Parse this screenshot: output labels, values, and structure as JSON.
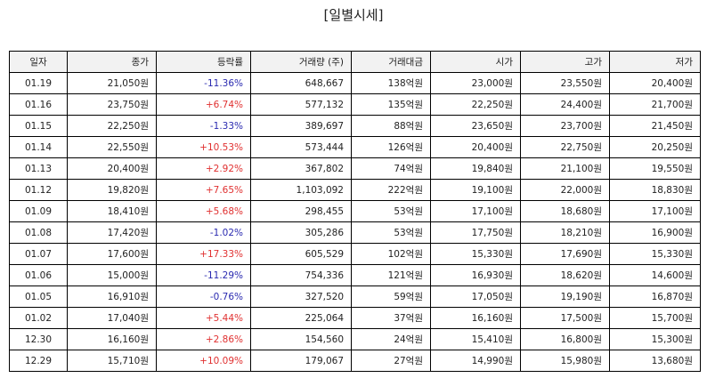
{
  "page": {
    "title": "[일별시세]"
  },
  "colors": {
    "up": "#e03030",
    "down": "#2a2ab0",
    "header_bg": "#f2f2f2",
    "border": "#000000"
  },
  "table": {
    "headers": [
      "일자",
      "종가",
      "등락률",
      "거래량 (주)",
      "거래대금",
      "시가",
      "고가",
      "저가"
    ],
    "rows": [
      {
        "date": "01.19",
        "close": "21,050원",
        "change": "-11.36%",
        "dir": "down",
        "volume": "648,667",
        "amount": "138억원",
        "open": "23,000원",
        "high": "23,550원",
        "low": "20,400원"
      },
      {
        "date": "01.16",
        "close": "23,750원",
        "change": "+6.74%",
        "dir": "up",
        "volume": "577,132",
        "amount": "135억원",
        "open": "22,250원",
        "high": "24,400원",
        "low": "21,700원"
      },
      {
        "date": "01.15",
        "close": "22,250원",
        "change": "-1.33%",
        "dir": "down",
        "volume": "389,697",
        "amount": "88억원",
        "open": "23,650원",
        "high": "23,700원",
        "low": "21,450원"
      },
      {
        "date": "01.14",
        "close": "22,550원",
        "change": "+10.53%",
        "dir": "up",
        "volume": "573,444",
        "amount": "126억원",
        "open": "20,400원",
        "high": "22,750원",
        "low": "20,250원"
      },
      {
        "date": "01.13",
        "close": "20,400원",
        "change": "+2.92%",
        "dir": "up",
        "volume": "367,802",
        "amount": "74억원",
        "open": "19,840원",
        "high": "21,100원",
        "low": "19,550원"
      },
      {
        "date": "01.12",
        "close": "19,820원",
        "change": "+7.65%",
        "dir": "up",
        "volume": "1,103,092",
        "amount": "222억원",
        "open": "19,100원",
        "high": "22,000원",
        "low": "18,830원"
      },
      {
        "date": "01.09",
        "close": "18,410원",
        "change": "+5.68%",
        "dir": "up",
        "volume": "298,455",
        "amount": "53억원",
        "open": "17,100원",
        "high": "18,680원",
        "low": "17,100원"
      },
      {
        "date": "01.08",
        "close": "17,420원",
        "change": "-1.02%",
        "dir": "down",
        "volume": "305,286",
        "amount": "53억원",
        "open": "17,750원",
        "high": "18,210원",
        "low": "16,900원"
      },
      {
        "date": "01.07",
        "close": "17,600원",
        "change": "+17.33%",
        "dir": "up",
        "volume": "605,529",
        "amount": "102억원",
        "open": "15,330원",
        "high": "17,690원",
        "low": "15,330원"
      },
      {
        "date": "01.06",
        "close": "15,000원",
        "change": "-11.29%",
        "dir": "down",
        "volume": "754,336",
        "amount": "121억원",
        "open": "16,930원",
        "high": "18,620원",
        "low": "14,600원"
      },
      {
        "date": "01.05",
        "close": "16,910원",
        "change": "-0.76%",
        "dir": "down",
        "volume": "327,520",
        "amount": "59억원",
        "open": "17,050원",
        "high": "19,190원",
        "low": "16,870원"
      },
      {
        "date": "01.02",
        "close": "17,040원",
        "change": "+5.44%",
        "dir": "up",
        "volume": "225,064",
        "amount": "37억원",
        "open": "16,160원",
        "high": "17,500원",
        "low": "15,700원"
      },
      {
        "date": "12.30",
        "close": "16,160원",
        "change": "+2.86%",
        "dir": "up",
        "volume": "154,560",
        "amount": "24억원",
        "open": "15,410원",
        "high": "16,800원",
        "low": "15,300원"
      },
      {
        "date": "12.29",
        "close": "15,710원",
        "change": "+10.09%",
        "dir": "up",
        "volume": "179,067",
        "amount": "27억원",
        "open": "14,990원",
        "high": "15,980원",
        "low": "13,680원"
      }
    ]
  }
}
